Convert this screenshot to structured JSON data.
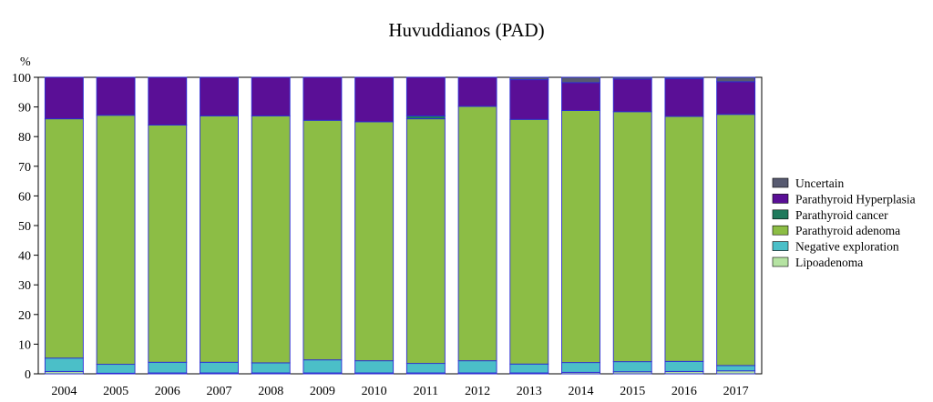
{
  "chart_data": {
    "type": "bar",
    "stacked": true,
    "title": "Huvuddianos (PAD)",
    "ylabel": "%",
    "xlabel": "",
    "ylim": [
      0,
      100
    ],
    "yticks": [
      0,
      10,
      20,
      30,
      40,
      50,
      60,
      70,
      80,
      90,
      100
    ],
    "grid": false,
    "legend_position": "right",
    "categories": [
      "2004",
      "2005",
      "2006",
      "2007",
      "2008",
      "2009",
      "2010",
      "2011",
      "2012",
      "2013",
      "2014",
      "2015",
      "2016",
      "2017"
    ],
    "series": [
      {
        "name": "Lipoadenoma",
        "color": "#b5e3a2",
        "values": [
          0.8,
          0.2,
          0.3,
          0.3,
          0.3,
          0.3,
          0.3,
          0.3,
          0.3,
          0.3,
          0.5,
          0.7,
          0.8,
          1.0
        ]
      },
      {
        "name": "Negative exploration",
        "color": "#4bbfc8",
        "values": [
          4.5,
          3.0,
          3.6,
          3.6,
          3.4,
          4.4,
          4.1,
          3.2,
          4.1,
          3.0,
          3.3,
          3.4,
          3.4,
          1.8
        ]
      },
      {
        "name": "Parathyroid adenoma",
        "color": "#8cbd45",
        "values": [
          80.7,
          84.0,
          80.0,
          83.1,
          83.3,
          80.8,
          80.6,
          82.5,
          85.8,
          82.5,
          85.0,
          84.3,
          82.6,
          84.7
        ]
      },
      {
        "name": "Parathyroid cancer",
        "color": "#1f7a5c",
        "values": [
          0,
          0,
          0,
          0,
          0,
          0,
          0,
          1.0,
          0,
          0,
          0,
          0,
          0,
          0
        ]
      },
      {
        "name": "Parathyroid Hyperplasia",
        "color": "#5a0f96",
        "values": [
          14.0,
          12.8,
          16.1,
          13.0,
          13.0,
          14.5,
          15.0,
          13.0,
          9.8,
          13.4,
          9.4,
          11.0,
          12.7,
          11.0
        ]
      },
      {
        "name": "Uncertain",
        "color": "#575a70",
        "values": [
          0,
          0,
          0,
          0,
          0,
          0,
          0,
          0,
          0,
          0.8,
          1.8,
          0.6,
          0.5,
          1.5
        ]
      }
    ]
  }
}
